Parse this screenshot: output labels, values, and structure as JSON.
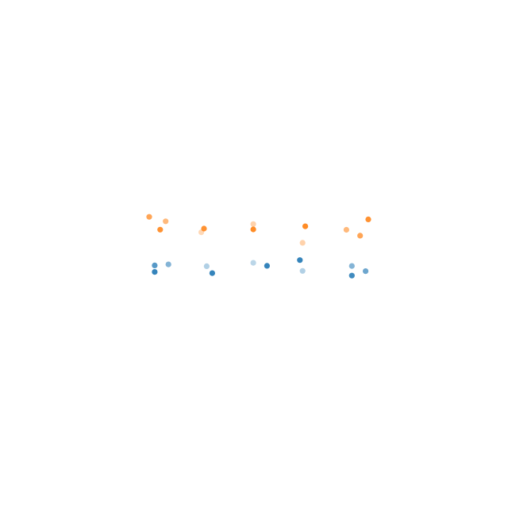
{
  "chart_data": {
    "type": "scatter",
    "grid": false,
    "colors": {
      "orange": "#ff7f0e",
      "blue": "#1f77b4"
    },
    "groups": [
      {
        "color": "orange",
        "points": [
          {
            "x": 0,
            "y": 0.968,
            "alpha": 0.7
          },
          {
            "x": 0.6,
            "y": 0.934,
            "alpha": 0.55
          },
          {
            "x": 0.4,
            "y": 0.87,
            "alpha": 0.85
          },
          {
            "x": 1.9,
            "y": 0.85,
            "alpha": 0.3
          },
          {
            "x": 2.0,
            "y": 0.878,
            "alpha": 0.85
          },
          {
            "x": 3.8,
            "y": 0.913,
            "alpha": 0.35
          },
          {
            "x": 3.8,
            "y": 0.872,
            "alpha": 0.9
          },
          {
            "x": 5.7,
            "y": 0.896,
            "alpha": 0.9
          },
          {
            "x": 5.6,
            "y": 0.769,
            "alpha": 0.35
          },
          {
            "x": 7.2,
            "y": 0.869,
            "alpha": 0.55
          },
          {
            "x": 7.7,
            "y": 0.824,
            "alpha": 0.7
          },
          {
            "x": 8.0,
            "y": 0.949,
            "alpha": 0.85
          }
        ]
      },
      {
        "color": "blue",
        "points": [
          {
            "x": 0.2,
            "y": 0.595,
            "alpha": 0.75
          },
          {
            "x": 0.2,
            "y": 0.545,
            "alpha": 0.9
          },
          {
            "x": 0.7,
            "y": 0.603,
            "alpha": 0.55
          },
          {
            "x": 2.1,
            "y": 0.589,
            "alpha": 0.35
          },
          {
            "x": 2.3,
            "y": 0.536,
            "alpha": 0.9
          },
          {
            "x": 3.8,
            "y": 0.615,
            "alpha": 0.3
          },
          {
            "x": 4.3,
            "y": 0.592,
            "alpha": 0.9
          },
          {
            "x": 5.5,
            "y": 0.636,
            "alpha": 0.9
          },
          {
            "x": 5.6,
            "y": 0.553,
            "alpha": 0.35
          },
          {
            "x": 7.4,
            "y": 0.591,
            "alpha": 0.55
          },
          {
            "x": 7.4,
            "y": 0.517,
            "alpha": 0.85
          },
          {
            "x": 7.9,
            "y": 0.551,
            "alpha": 0.65
          }
        ]
      }
    ]
  }
}
